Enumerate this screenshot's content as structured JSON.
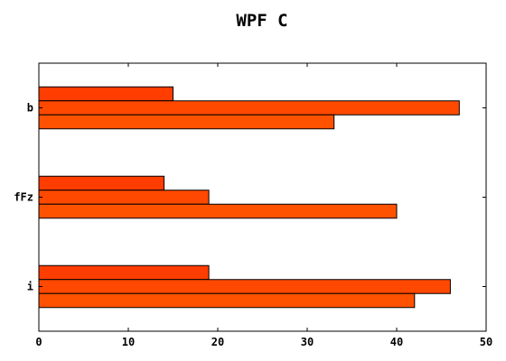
{
  "chart_data": {
    "type": "bar",
    "orientation": "horizontal",
    "title": "WPF C",
    "xlabel": "",
    "ylabel": "",
    "categories": [
      "b",
      "fFz",
      "i"
    ],
    "series": [
      {
        "values": [
          15,
          14,
          19
        ],
        "color": "#ff3d00"
      },
      {
        "values": [
          47,
          19,
          46
        ],
        "color": "#ff4800"
      },
      {
        "values": [
          33,
          40,
          42
        ],
        "color": "#ff5200"
      }
    ],
    "xlim": [
      0,
      50
    ],
    "xticks": [
      0,
      10,
      20,
      30,
      40,
      50
    ],
    "grid": false,
    "legend": "none"
  }
}
